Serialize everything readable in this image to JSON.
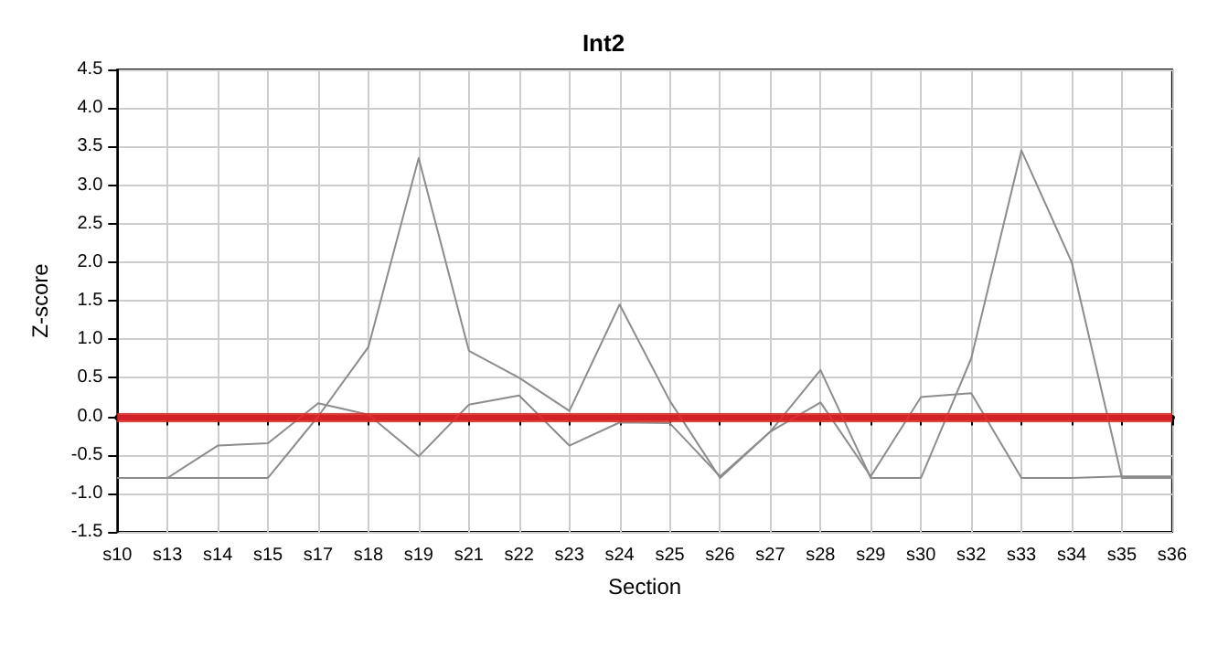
{
  "chart_data": {
    "type": "line",
    "title": "Int2",
    "xlabel": "Section",
    "ylabel": "Z-score",
    "categories": [
      "s10",
      "s13",
      "s14",
      "s15",
      "s17",
      "s18",
      "s19",
      "s21",
      "s22",
      "s23",
      "s24",
      "s25",
      "s26",
      "s27",
      "s28",
      "s29",
      "s30",
      "s32",
      "s33",
      "s34",
      "s35",
      "s36"
    ],
    "series": [
      {
        "color": "#8c8c8c",
        "values": [
          -0.8,
          -0.8,
          -0.8,
          -0.8,
          0.0,
          0.9,
          3.35,
          0.85,
          0.5,
          0.07,
          1.45,
          0.2,
          -0.8,
          -0.2,
          0.6,
          -0.8,
          -0.8,
          0.75,
          3.45,
          2.0,
          -0.8,
          -0.8
        ]
      },
      {
        "color": "#8c8c8c",
        "values": [
          -0.8,
          -0.8,
          -0.38,
          -0.35,
          0.17,
          0.02,
          -0.52,
          0.15,
          0.27,
          -0.38,
          -0.08,
          -0.09,
          -0.78,
          -0.2,
          0.18,
          -0.78,
          0.25,
          0.3,
          -0.8,
          -0.8,
          -0.78,
          -0.78
        ]
      }
    ],
    "ylim": [
      -1.5,
      4.5
    ],
    "yticks": [
      {
        "value": -1.5,
        "label": "-1.5"
      },
      {
        "value": -1,
        "label": "-1.0"
      },
      {
        "value": -0.5,
        "label": "-0.5"
      },
      {
        "value": 0,
        "label": "0.0"
      },
      {
        "value": 0.5,
        "label": "0.5"
      },
      {
        "value": 1,
        "label": "1.0"
      },
      {
        "value": 1.5,
        "label": "1.5"
      },
      {
        "value": 2,
        "label": "2.0"
      },
      {
        "value": 2.5,
        "label": "2.5"
      },
      {
        "value": 3,
        "label": "3.0"
      },
      {
        "value": 3.5,
        "label": "3.5"
      },
      {
        "value": 4,
        "label": "4.0"
      },
      {
        "value": 4.5,
        "label": "4.5"
      }
    ],
    "ref_lines": [
      {
        "axis": "y",
        "value": 0,
        "color": "#e8272a"
      }
    ],
    "grid": true,
    "marker": "none",
    "line_style": "solid"
  }
}
